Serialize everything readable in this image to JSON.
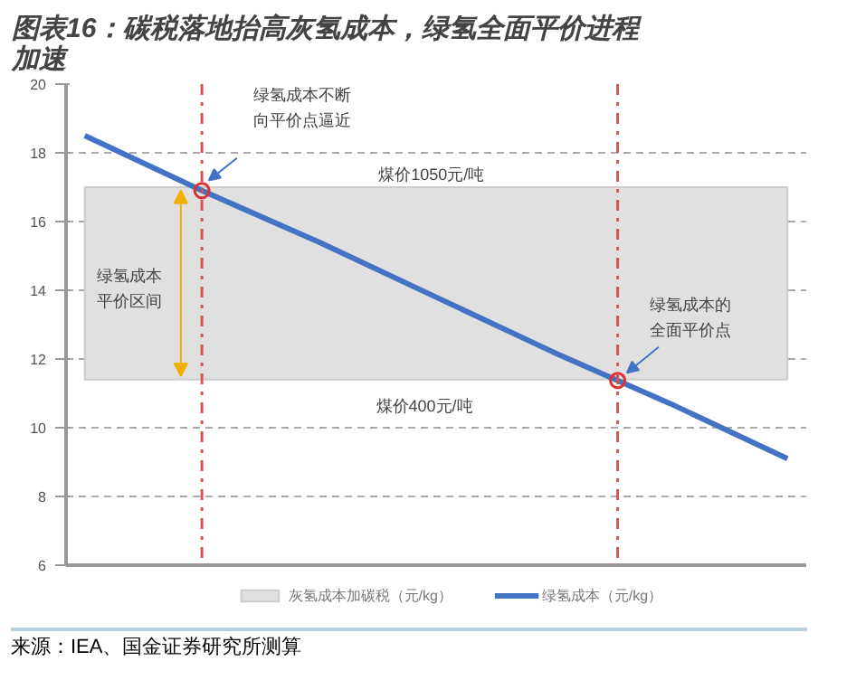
{
  "chart_data": {
    "type": "line",
    "title": "图表16：碳税落地抬高灰氢成本，绿氢全面平价进程加速",
    "categories": [
      null,
      null,
      null,
      null,
      null,
      null,
      null
    ],
    "series": [
      {
        "name": "绿氢成本（元/kg）",
        "color": "#4472c4",
        "values": [
          18.5,
          16.9,
          15.4,
          13.8,
          12.2,
          10.7,
          9.1
        ]
      }
    ],
    "ylim": [
      6,
      20
    ],
    "yticks": [
      6,
      8,
      10,
      12,
      14,
      16,
      18,
      20
    ],
    "grid": "y",
    "legend": "bottom",
    "tick_labels": "y",
    "marker": "none",
    "line_style": "solid",
    "bands": [
      {
        "axis": "y",
        "from": 11.4,
        "to": 17,
        "label": "灰氢成本加碳税（元/kg）",
        "color": "#e0e0e0"
      }
    ],
    "annotations": [
      "绿氢成本不断向平价点逼近",
      "煤价1050元/吨",
      "煤价400元/吨",
      "绿氢成本平价区间",
      "绿氢成本的全面平价点",
      "来源：IEA、国金证券研究所测算"
    ]
  }
}
